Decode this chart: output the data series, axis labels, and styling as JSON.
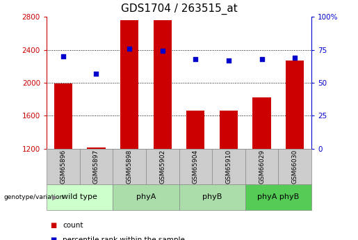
{
  "title": "GDS1704 / 263515_at",
  "samples": [
    "GSM65896",
    "GSM65897",
    "GSM65898",
    "GSM65902",
    "GSM65904",
    "GSM65910",
    "GSM66029",
    "GSM66030"
  ],
  "counts": [
    1990,
    1220,
    2760,
    2760,
    1660,
    1660,
    1820,
    2270
  ],
  "percentiles": [
    70,
    57,
    76,
    74,
    68,
    67,
    68,
    69
  ],
  "groups": [
    {
      "label": "wild type",
      "start": 0,
      "end": 1,
      "color": "#ccffcc"
    },
    {
      "label": "phyA",
      "start": 2,
      "end": 3,
      "color": "#aaddaa"
    },
    {
      "label": "phyB",
      "start": 4,
      "end": 5,
      "color": "#aaddaa"
    },
    {
      "label": "phyA phyB",
      "start": 6,
      "end": 7,
      "color": "#55cc55"
    }
  ],
  "bar_color": "#cc0000",
  "dot_color": "#0000cc",
  "ymin": 1200,
  "ymax": 2800,
  "yticks": [
    1200,
    1600,
    2000,
    2400,
    2800
  ],
  "y2min": 0,
  "y2max": 100,
  "y2ticks": [
    0,
    25,
    50,
    75,
    100
  ],
  "y2ticklabels": [
    "0",
    "25",
    "50",
    "75",
    "100%"
  ],
  "grid_values": [
    1600,
    2000,
    2400
  ],
  "title_fontsize": 11,
  "tick_fontsize": 7.5,
  "sample_fontsize": 6.5,
  "group_fontsize": 8,
  "legend_fontsize": 7.5,
  "bar_width": 0.55,
  "sample_cell_color": "#cccccc",
  "cell_border_color": "#888888"
}
